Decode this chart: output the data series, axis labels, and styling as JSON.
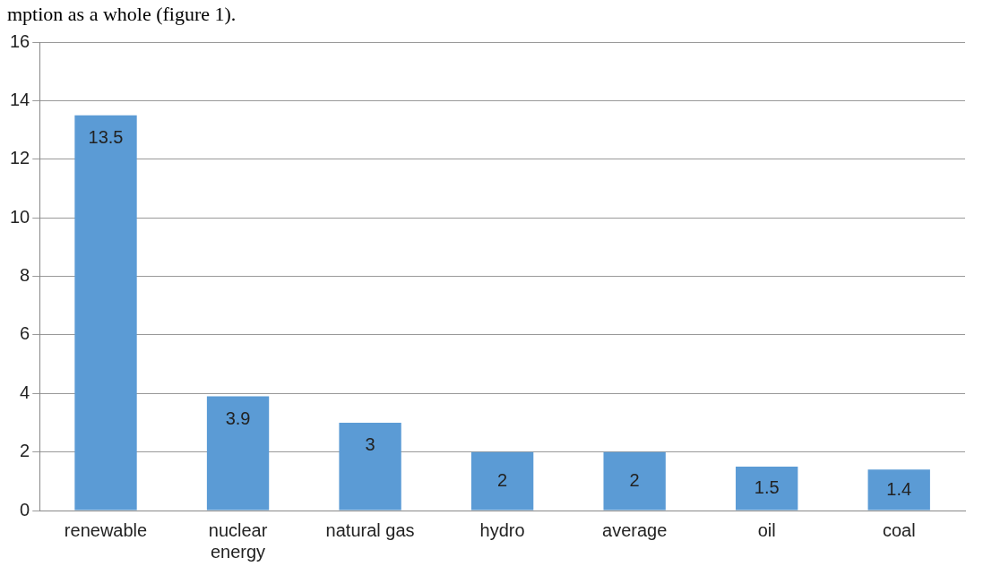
{
  "chart_data": {
    "type": "bar",
    "annotations": [
      "mption as a whole (figure 1)."
    ],
    "categories": [
      "renewable",
      "nuclear energy",
      "natural gas",
      "hydro",
      "average",
      "oil",
      "coal"
    ],
    "values": [
      13.5,
      3.9,
      3,
      2,
      2,
      1.5,
      1.4
    ],
    "color": "#5b9bd5",
    "ylim": [
      0,
      16
    ],
    "yticks": [
      0,
      2,
      4,
      6,
      8,
      10,
      12,
      14,
      16
    ],
    "grid": "y",
    "data_labels": true
  }
}
